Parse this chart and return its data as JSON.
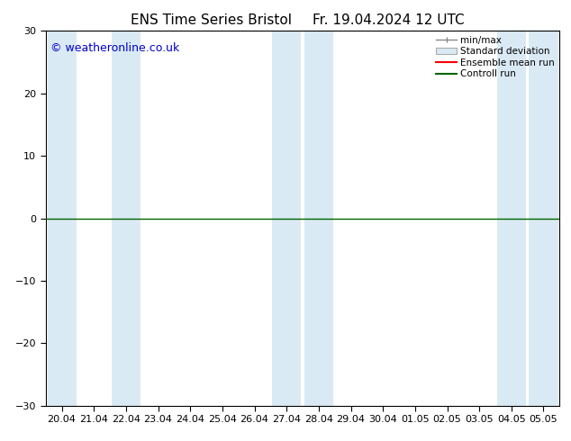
{
  "title": "ENS Time Series Bristol",
  "title2": "Fr. 19.04.2024 12 UTC",
  "watermark": "© weatheronline.co.uk",
  "ylim": [
    -30,
    30
  ],
  "yticks": [
    -30,
    -20,
    -10,
    0,
    10,
    20,
    30
  ],
  "x_labels": [
    "20.04",
    "21.04",
    "22.04",
    "23.04",
    "24.04",
    "25.04",
    "26.04",
    "27.04",
    "28.04",
    "29.04",
    "30.04",
    "01.05",
    "02.05",
    "03.05",
    "04.05",
    "05.05"
  ],
  "shade_indices": [
    0,
    2,
    7,
    8,
    14,
    15
  ],
  "background_color": "#ffffff",
  "shade_color": "#daeaf5",
  "zero_line_color": "#006600",
  "ensemble_mean_color": "#ff0000",
  "control_run_color": "#006600",
  "legend_items": [
    "min/max",
    "Standard deviation",
    "Ensemble mean run",
    "Controll run"
  ],
  "title_fontsize": 11,
  "tick_fontsize": 8,
  "watermark_color": "#0000cc",
  "watermark_fontsize": 9
}
